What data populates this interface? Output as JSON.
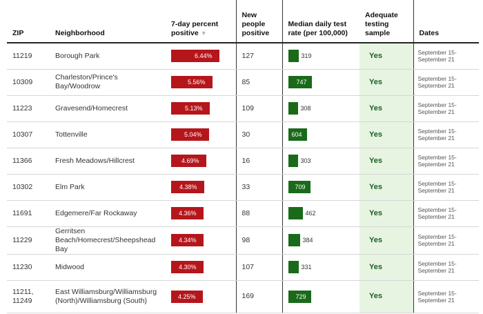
{
  "header": {
    "zip": "ZIP",
    "neighborhood": "Neighborhood",
    "pct_positive": "7-day percent positive",
    "sort_glyph": "▼",
    "new_positive": "New people positive",
    "test_rate": "Median daily test rate (per 100,000)",
    "adequate": "Adequate testing sample",
    "dates": "Dates"
  },
  "scale": {
    "pct_max": 6.44,
    "rate_max": 747
  },
  "colors": {
    "pct_bar": "#b5161b",
    "rate_bar": "#1a6a1a",
    "adequate_bg": "#e6f4e1"
  },
  "rows": [
    {
      "zip": "11219",
      "neighborhood": "Borough Park",
      "pct": 6.44,
      "pct_label": "6.44%",
      "new_positive": "127",
      "rate": 319,
      "rate_label": "319",
      "adequate": "Yes",
      "dates": "September 15-September 21"
    },
    {
      "zip": "10309",
      "neighborhood": "Charleston/Prince's Bay/Woodrow",
      "pct": 5.56,
      "pct_label": "5.56%",
      "new_positive": "85",
      "rate": 747,
      "rate_label": "747",
      "adequate": "Yes",
      "dates": "September 15-September 21"
    },
    {
      "zip": "11223",
      "neighborhood": "Gravesend/Homecrest",
      "pct": 5.13,
      "pct_label": "5.13%",
      "new_positive": "109",
      "rate": 308,
      "rate_label": "308",
      "adequate": "Yes",
      "dates": "September 15-September 21"
    },
    {
      "zip": "10307",
      "neighborhood": "Tottenville",
      "pct": 5.04,
      "pct_label": "5.04%",
      "new_positive": "30",
      "rate": 604,
      "rate_label": "604",
      "adequate": "Yes",
      "dates": "September 15-September 21"
    },
    {
      "zip": "11366",
      "neighborhood": "Fresh Meadows/Hillcrest",
      "pct": 4.69,
      "pct_label": "4.69%",
      "new_positive": "16",
      "rate": 303,
      "rate_label": "303",
      "adequate": "Yes",
      "dates": "September 15-September 21"
    },
    {
      "zip": "10302",
      "neighborhood": "Elm Park",
      "pct": 4.38,
      "pct_label": "4.38%",
      "new_positive": "33",
      "rate": 709,
      "rate_label": "709",
      "adequate": "Yes",
      "dates": "September 15-September 21"
    },
    {
      "zip": "11691",
      "neighborhood": "Edgemere/Far Rockaway",
      "pct": 4.36,
      "pct_label": "4.36%",
      "new_positive": "88",
      "rate": 462,
      "rate_label": "462",
      "adequate": "Yes",
      "dates": "September 15-September 21"
    },
    {
      "zip": "11229",
      "neighborhood": "Gerritsen Beach/Homecrest/Sheepshead Bay",
      "pct": 4.34,
      "pct_label": "4.34%",
      "new_positive": "98",
      "rate": 384,
      "rate_label": "384",
      "adequate": "Yes",
      "dates": "September 15-September 21"
    },
    {
      "zip": "11230",
      "neighborhood": "Midwood",
      "pct": 4.3,
      "pct_label": "4.30%",
      "new_positive": "107",
      "rate": 331,
      "rate_label": "331",
      "adequate": "Yes",
      "dates": "September 15-September 21"
    },
    {
      "zip": "11211, 11249",
      "neighborhood": "East Williamsburg/Williamsburg (North)/Williamsburg (South)",
      "pct": 4.25,
      "pct_label": "4.25%",
      "new_positive": "169",
      "rate": 729,
      "rate_label": "729",
      "adequate": "Yes",
      "dates": "September 15-September 21"
    }
  ]
}
